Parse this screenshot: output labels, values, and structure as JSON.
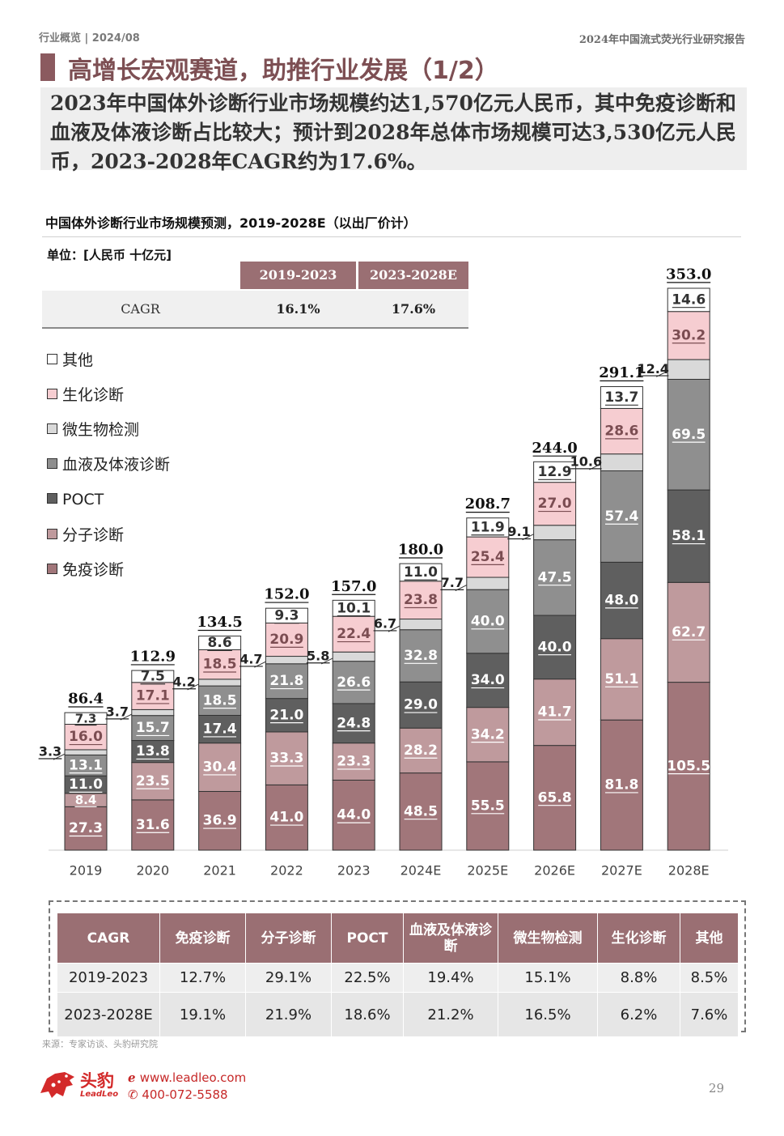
{
  "header": {
    "section": "行业概览 | 2024/08",
    "report": "2024年中国流式荧光行业研究报告"
  },
  "title": "高增长宏观赛道，助推行业发展（1/2）",
  "summary": "2023年中国体外诊断行业市场规模约达1,570亿元人民币，其中免疫诊断和血液及体液诊断占比较大；预计到2028年总体市场规模可达3,530亿元人民币，2023-2028年CAGR约为17.6%。",
  "chart_header": {
    "title": "中国体外诊断行业市场规模预测，2019-2028E（以出厂价计）",
    "unit": "单位：[人民币 十亿元]"
  },
  "cagr_summary": {
    "label": "CAGR",
    "periods": [
      "2019-2023",
      "2023-2028E"
    ],
    "values": [
      "16.1%",
      "17.6%"
    ]
  },
  "chart_data": {
    "type": "bar",
    "stacked": true,
    "title": "中国体外诊断行业市场规模预测，2019-2028E（以出厂价计）",
    "ylabel": "人民币 十亿元",
    "ylim": [
      0,
      353.0
    ],
    "categories": [
      "2019",
      "2020",
      "2021",
      "2022",
      "2023",
      "2024E",
      "2025E",
      "2026E",
      "2027E",
      "2028E"
    ],
    "totals": [
      "86.4",
      "112.9",
      "134.5",
      "152.0",
      "157.0",
      "180.0",
      "208.7",
      "244.0",
      "291.1",
      "353.0"
    ],
    "series": [
      {
        "name": "免疫诊断",
        "color": "#a1767a",
        "text": "#ffffff",
        "values": [
          27.3,
          31.6,
          36.9,
          41.0,
          44.0,
          48.5,
          55.5,
          65.8,
          81.8,
          105.5
        ]
      },
      {
        "name": "分子诊断",
        "color": "#bf9a9d",
        "text": "#ffffff",
        "values": [
          8.4,
          23.5,
          30.4,
          33.3,
          23.3,
          28.2,
          34.2,
          41.7,
          51.1,
          62.7
        ]
      },
      {
        "name": "POCT",
        "color": "#5f5f5f",
        "text": "#ffffff",
        "values": [
          11.0,
          13.8,
          17.4,
          21.0,
          24.8,
          29.0,
          34.0,
          40.0,
          48.0,
          58.1
        ]
      },
      {
        "name": "血液及体液诊断",
        "color": "#8f8f8f",
        "text": "#ffffff",
        "values": [
          13.1,
          15.7,
          18.5,
          21.8,
          26.6,
          32.8,
          40.0,
          47.5,
          57.4,
          69.5
        ]
      },
      {
        "name": "微生物检测",
        "color": "#d9d9d9",
        "text": "#333333",
        "values": [
          3.3,
          3.7,
          4.2,
          4.7,
          5.8,
          6.7,
          7.7,
          9.1,
          10.6,
          12.4
        ]
      },
      {
        "name": "生化诊断",
        "color": "#f6cdd1",
        "text": "#7b4d52",
        "values": [
          16.0,
          17.1,
          18.5,
          20.9,
          22.4,
          23.8,
          25.4,
          27.0,
          28.6,
          30.2
        ]
      },
      {
        "name": "其他",
        "color": "#ffffff",
        "text": "#333333",
        "values": [
          7.3,
          7.5,
          8.6,
          9.3,
          10.1,
          11.0,
          11.9,
          12.9,
          13.7,
          14.6
        ]
      }
    ],
    "legend": [
      "其他",
      "生化诊断",
      "微生物检测",
      "血液及体液诊断",
      "POCT",
      "分子诊断",
      "免疫诊断"
    ]
  },
  "cagr_table": {
    "headers": [
      "CAGR",
      "免疫诊断",
      "分子诊断",
      "POCT",
      "血液及体液诊断",
      "微生物检测",
      "生化诊断",
      "其他"
    ],
    "rows": [
      [
        "2019-2023",
        "12.7%",
        "29.1%",
        "22.5%",
        "19.4%",
        "15.1%",
        "8.8%",
        "8.5%"
      ],
      [
        "2023-2028E",
        "19.1%",
        "21.9%",
        "18.6%",
        "21.2%",
        "16.5%",
        "6.2%",
        "7.6%"
      ]
    ]
  },
  "footer": {
    "source": "来源：专家访谈、头豹研究院",
    "brand": "头豹",
    "brand_en": "LeadLeo",
    "web": "www.leadleo.com",
    "phone": "400-072-5588",
    "page": "29"
  }
}
